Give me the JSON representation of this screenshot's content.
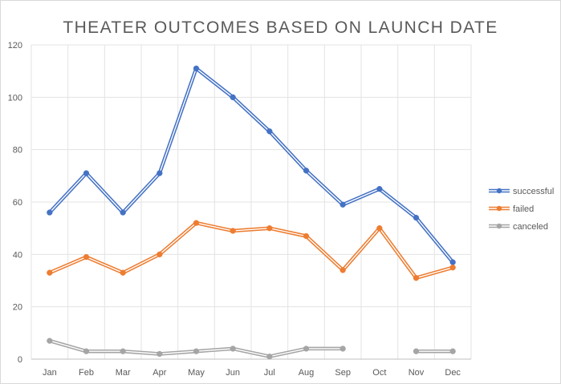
{
  "chart_data": {
    "type": "line",
    "title": "THEATER OUTCOMES BASED ON LAUNCH DATE",
    "xlabel": "",
    "ylabel": "",
    "categories": [
      "Jan",
      "Feb",
      "Mar",
      "Apr",
      "May",
      "Jun",
      "Jul",
      "Aug",
      "Sep",
      "Oct",
      "Nov",
      "Dec"
    ],
    "ylim": [
      0,
      120
    ],
    "yticks": [
      0,
      20,
      40,
      60,
      80,
      100,
      120
    ],
    "grid": true,
    "legend_position": "right",
    "series": [
      {
        "name": "successful",
        "color": "#4472C4",
        "values": [
          56,
          71,
          56,
          71,
          111,
          100,
          87,
          72,
          59,
          65,
          54,
          37
        ]
      },
      {
        "name": "failed",
        "color": "#ED7D31",
        "values": [
          33,
          39,
          33,
          40,
          52,
          49,
          50,
          47,
          34,
          50,
          31,
          35
        ]
      },
      {
        "name": "canceled",
        "color": "#A5A5A5",
        "values": [
          7,
          3,
          3,
          2,
          3,
          4,
          1,
          4,
          4,
          null,
          3,
          3
        ]
      }
    ]
  }
}
